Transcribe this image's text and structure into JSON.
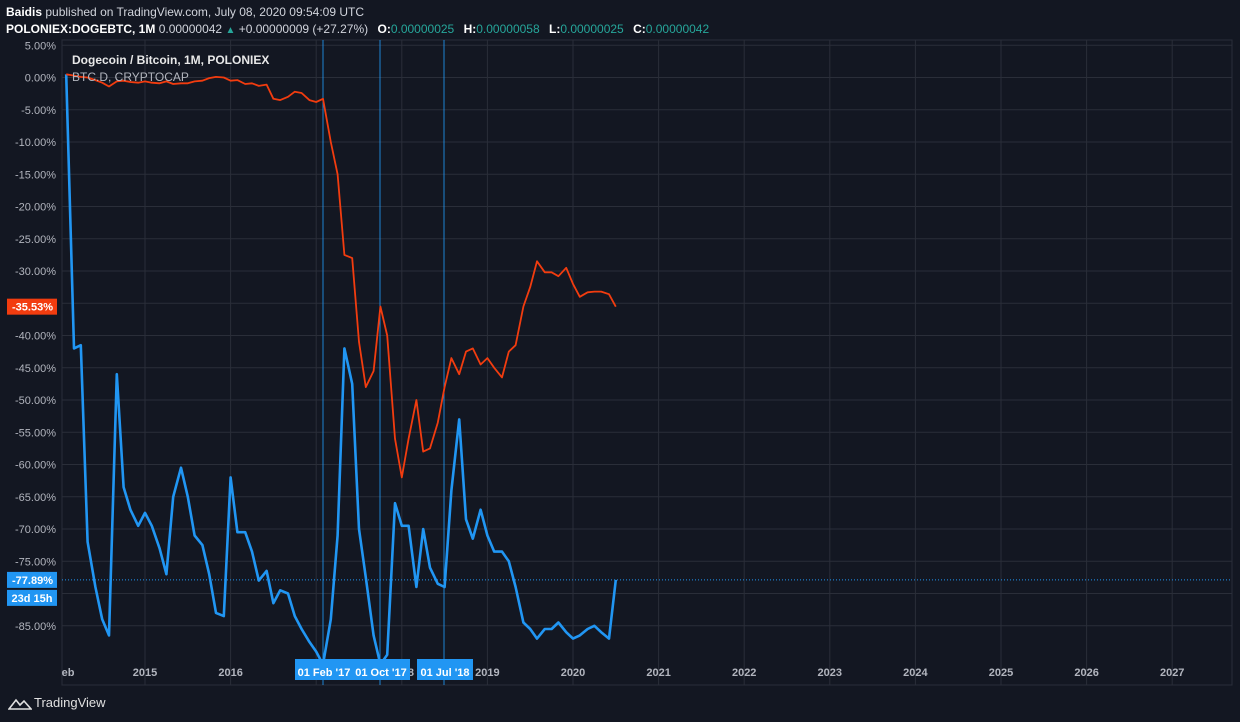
{
  "header": {
    "author": "Baidis",
    "published_text": "published on TradingView.com, July 08, 2020 09:54:09 UTC",
    "symbol": "POLONIEX:DOGEBTC, 1M",
    "last_price": "0.00000042",
    "change_arrow": "▲",
    "change": "+0.00000009 (+27.27%)",
    "open_label": "O:",
    "open": "0.00000025",
    "high_label": "H:",
    "high": "0.00000058",
    "low_label": "L:",
    "low": "0.00000025",
    "close_label": "C:",
    "close": "0.00000042"
  },
  "legend": {
    "main": "Dogecoin / Bitcoin, 1M, POLONIEX",
    "compare": "BTC.D, CRYPTOCAP"
  },
  "price_badges": {
    "orange_value": "-35.53%",
    "blue_value": "-77.89%",
    "countdown": "23d 15h"
  },
  "date_markers": [
    "01 Feb '17",
    "01 Oct '17",
    "01 Jul '18"
  ],
  "footer": {
    "brand": "TradingView"
  },
  "colors": {
    "background": "#131722",
    "grid": "#2a2e39",
    "dogebtc_line": "#2196f3",
    "btcd_line": "#f23c0f",
    "marker_badge": "#2196f3"
  },
  "chart_data": {
    "type": "line",
    "title": "Dogecoin / Bitcoin, 1M, POLONIEX",
    "x_ticks": [
      "eb",
      "2015",
      "2016",
      "2017",
      "2018",
      "2019",
      "2020",
      "2021",
      "2022",
      "2023",
      "2024",
      "2025",
      "2026",
      "2027"
    ],
    "y_unit": "%",
    "y_ticks": [
      "5.00%",
      "0.00%",
      "-5.00%",
      "-10.00%",
      "-15.00%",
      "-20.00%",
      "-25.00%",
      "-30.00%",
      "-35.00%",
      "-40.00%",
      "-45.00%",
      "-50.00%",
      "-55.00%",
      "-60.00%",
      "-65.00%",
      "-70.00%",
      "-75.00%",
      "-80.00%",
      "-85.00%"
    ],
    "ylim": [
      -90,
      5
    ],
    "grid": true,
    "series": [
      {
        "name": "Dogecoin / Bitcoin, 1M, POLONIEX",
        "points": [
          [
            2014.08,
            0.5
          ],
          [
            2014.17,
            -42
          ],
          [
            2014.25,
            -41.5
          ],
          [
            2014.33,
            -72
          ],
          [
            2014.42,
            -79
          ],
          [
            2014.5,
            -84
          ],
          [
            2014.58,
            -86.5
          ],
          [
            2014.67,
            -46
          ],
          [
            2014.75,
            -63.5
          ],
          [
            2014.83,
            -67
          ],
          [
            2014.92,
            -69.5
          ],
          [
            2015.0,
            -67.5
          ],
          [
            2015.08,
            -69.5
          ],
          [
            2015.17,
            -73
          ],
          [
            2015.25,
            -77
          ],
          [
            2015.33,
            -65
          ],
          [
            2015.42,
            -60.5
          ],
          [
            2015.5,
            -65
          ],
          [
            2015.58,
            -71
          ],
          [
            2015.67,
            -72.5
          ],
          [
            2015.75,
            -77
          ],
          [
            2015.83,
            -83
          ],
          [
            2015.92,
            -83.5
          ],
          [
            2016.0,
            -62
          ],
          [
            2016.08,
            -70.5
          ],
          [
            2016.17,
            -70.5
          ],
          [
            2016.25,
            -73.5
          ],
          [
            2016.33,
            -78
          ],
          [
            2016.42,
            -76.5
          ],
          [
            2016.5,
            -81.5
          ],
          [
            2016.58,
            -79.5
          ],
          [
            2016.67,
            -80
          ],
          [
            2016.75,
            -83.5
          ],
          [
            2016.83,
            -85.5
          ],
          [
            2016.92,
            -87.5
          ],
          [
            2017.0,
            -89
          ],
          [
            2017.08,
            -91
          ],
          [
            2017.17,
            -84
          ],
          [
            2017.25,
            -71
          ],
          [
            2017.33,
            -42
          ],
          [
            2017.42,
            -47.5
          ],
          [
            2017.5,
            -70
          ],
          [
            2017.58,
            -77.5
          ],
          [
            2017.67,
            -86.5
          ],
          [
            2017.75,
            -91
          ],
          [
            2017.83,
            -89.5
          ],
          [
            2017.92,
            -66
          ],
          [
            2018.0,
            -69.5
          ],
          [
            2018.08,
            -69.5
          ],
          [
            2018.17,
            -79
          ],
          [
            2018.25,
            -70
          ],
          [
            2018.33,
            -76
          ],
          [
            2018.42,
            -78.5
          ],
          [
            2018.5,
            -79
          ],
          [
            2018.58,
            -64
          ],
          [
            2018.67,
            -53
          ],
          [
            2018.75,
            -68.5
          ],
          [
            2018.83,
            -71.5
          ],
          [
            2018.92,
            -67
          ],
          [
            2019.0,
            -71
          ],
          [
            2019.08,
            -73.5
          ],
          [
            2019.17,
            -73.5
          ],
          [
            2019.25,
            -75
          ],
          [
            2019.33,
            -79
          ],
          [
            2019.42,
            -84.5
          ],
          [
            2019.5,
            -85.5
          ],
          [
            2019.58,
            -87
          ],
          [
            2019.67,
            -85.5
          ],
          [
            2019.75,
            -85.5
          ],
          [
            2019.83,
            -84.5
          ],
          [
            2019.92,
            -86
          ],
          [
            2020.0,
            -87
          ],
          [
            2020.08,
            -86.5
          ],
          [
            2020.17,
            -85.5
          ],
          [
            2020.25,
            -85
          ],
          [
            2020.33,
            -86
          ],
          [
            2020.42,
            -87
          ],
          [
            2020.5,
            -77.89
          ]
        ]
      },
      {
        "name": "BTC.D, CRYPTOCAP",
        "points": [
          [
            2014.08,
            0.5
          ],
          [
            2014.17,
            0.3
          ],
          [
            2014.25,
            0.1
          ],
          [
            2014.33,
            0.0
          ],
          [
            2014.42,
            -0.4
          ],
          [
            2014.5,
            -0.8
          ],
          [
            2014.58,
            -1.4
          ],
          [
            2014.67,
            -0.6
          ],
          [
            2014.75,
            -0.5
          ],
          [
            2014.83,
            -0.7
          ],
          [
            2014.92,
            -0.8
          ],
          [
            2015.0,
            -0.6
          ],
          [
            2015.08,
            -0.8
          ],
          [
            2015.17,
            -0.9
          ],
          [
            2015.25,
            -0.6
          ],
          [
            2015.33,
            -1.0
          ],
          [
            2015.42,
            -0.9
          ],
          [
            2015.5,
            -0.9
          ],
          [
            2015.58,
            -0.6
          ],
          [
            2015.67,
            -0.5
          ],
          [
            2015.75,
            -0.1
          ],
          [
            2015.83,
            0.1
          ],
          [
            2015.92,
            0.0
          ],
          [
            2016.0,
            -0.5
          ],
          [
            2016.08,
            -0.4
          ],
          [
            2016.17,
            -1.0
          ],
          [
            2016.25,
            -0.9
          ],
          [
            2016.33,
            -1.3
          ],
          [
            2016.42,
            -1.1
          ],
          [
            2016.5,
            -3.3
          ],
          [
            2016.58,
            -3.5
          ],
          [
            2016.67,
            -3.0
          ],
          [
            2016.75,
            -2.2
          ],
          [
            2016.83,
            -2.4
          ],
          [
            2016.92,
            -3.5
          ],
          [
            2017.0,
            -3.8
          ],
          [
            2017.08,
            -3.3
          ],
          [
            2017.17,
            -10
          ],
          [
            2017.25,
            -15
          ],
          [
            2017.33,
            -27.5
          ],
          [
            2017.42,
            -28
          ],
          [
            2017.5,
            -41
          ],
          [
            2017.58,
            -48
          ],
          [
            2017.67,
            -45.5
          ],
          [
            2017.75,
            -35.5
          ],
          [
            2017.83,
            -40
          ],
          [
            2017.92,
            -56
          ],
          [
            2018.0,
            -62
          ],
          [
            2018.08,
            -56
          ],
          [
            2018.17,
            -50
          ],
          [
            2018.25,
            -58
          ],
          [
            2018.33,
            -57.5
          ],
          [
            2018.42,
            -53.5
          ],
          [
            2018.5,
            -48
          ],
          [
            2018.58,
            -43.5
          ],
          [
            2018.67,
            -46
          ],
          [
            2018.75,
            -42.5
          ],
          [
            2018.83,
            -42
          ],
          [
            2018.92,
            -44.5
          ],
          [
            2019.0,
            -43.5
          ],
          [
            2019.08,
            -45
          ],
          [
            2019.17,
            -46.5
          ],
          [
            2019.25,
            -42.5
          ],
          [
            2019.33,
            -41.5
          ],
          [
            2019.42,
            -35.5
          ],
          [
            2019.5,
            -32.5
          ],
          [
            2019.58,
            -28.5
          ],
          [
            2019.67,
            -30.2
          ],
          [
            2019.75,
            -30.2
          ],
          [
            2019.83,
            -30.8
          ],
          [
            2019.92,
            -29.5
          ],
          [
            2020.0,
            -32
          ],
          [
            2020.08,
            -34
          ],
          [
            2020.17,
            -33.3
          ],
          [
            2020.25,
            -33.2
          ],
          [
            2020.33,
            -33.2
          ],
          [
            2020.42,
            -33.6
          ],
          [
            2020.5,
            -35.53
          ]
        ]
      }
    ],
    "current": {
      "blue": -77.89,
      "orange": -35.53
    }
  }
}
